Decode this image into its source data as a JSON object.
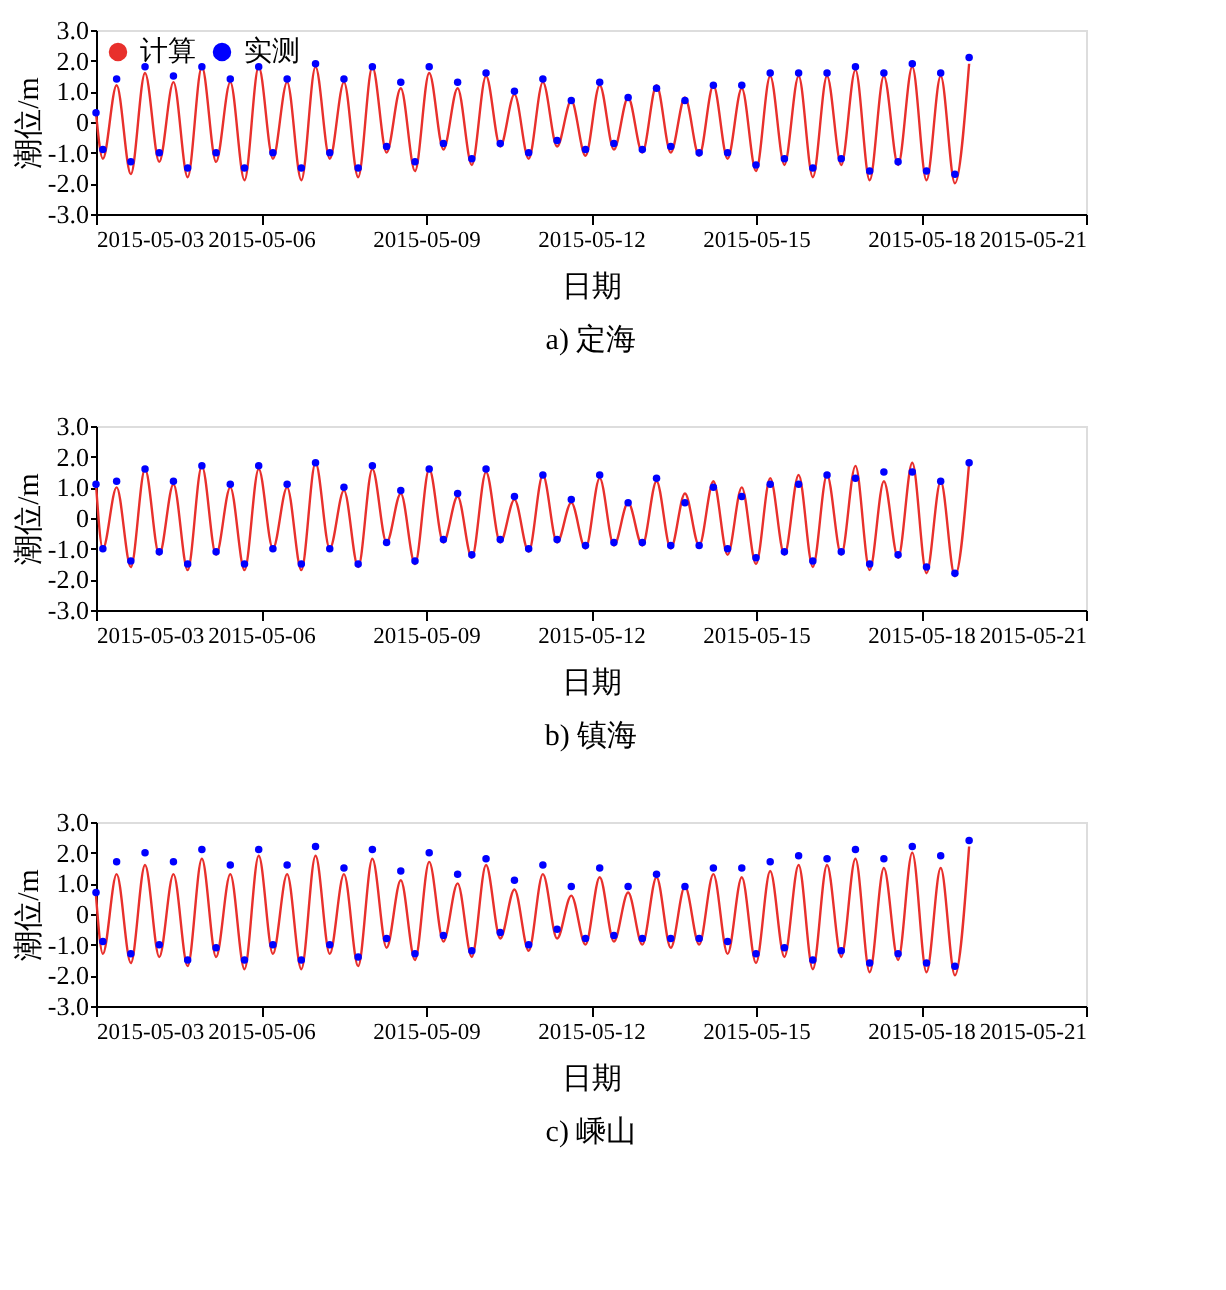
{
  "chart_data": [
    {
      "type": "line",
      "title": "a) 定海",
      "xlabel": "日期",
      "ylabel": "潮位/m",
      "legend": "top left",
      "grid": false,
      "x": [
        "2015-05-03T00:00",
        "2015-05-03T03:00",
        "2015-05-03T09:00",
        "2015-05-03T15:12",
        "2015-05-03T21:24",
        "2015-05-04T03:36",
        "2015-05-04T09:48",
        "2015-05-04T16:00",
        "2015-05-04T22:12",
        "2015-05-05T04:24",
        "2015-05-05T10:36",
        "2015-05-05T16:48",
        "2015-05-05T23:00",
        "2015-05-06T05:12",
        "2015-05-06T11:24",
        "2015-05-06T17:36",
        "2015-05-06T23:48",
        "2015-05-07T06:00",
        "2015-05-07T12:12",
        "2015-05-07T18:24",
        "2015-05-08T00:36",
        "2015-05-08T06:48",
        "2015-05-08T13:00",
        "2015-05-08T19:12",
        "2015-05-09T01:24",
        "2015-05-09T07:36",
        "2015-05-09T13:48",
        "2015-05-09T20:00",
        "2015-05-10T02:12",
        "2015-05-10T08:24",
        "2015-05-10T14:36",
        "2015-05-10T20:48",
        "2015-05-11T03:00",
        "2015-05-11T09:12",
        "2015-05-11T15:24",
        "2015-05-11T21:36",
        "2015-05-12T03:48",
        "2015-05-12T10:00",
        "2015-05-12T16:12",
        "2015-05-12T22:24",
        "2015-05-13T04:36",
        "2015-05-13T10:48",
        "2015-05-13T17:00",
        "2015-05-13T23:12",
        "2015-05-14T05:24",
        "2015-05-14T11:36",
        "2015-05-14T17:48",
        "2015-05-15T00:00",
        "2015-05-15T06:12",
        "2015-05-15T12:24",
        "2015-05-15T18:36",
        "2015-05-16T00:48",
        "2015-05-16T07:00",
        "2015-05-16T13:12",
        "2015-05-16T19:24",
        "2015-05-17T01:36",
        "2015-05-17T07:48",
        "2015-05-17T14:00",
        "2015-05-17T20:12",
        "2015-05-18T02:24",
        "2015-05-18T08:36",
        "2015-05-18T14:48",
        "2015-05-18T21:00"
      ],
      "xlim": [
        "2015-05-03",
        "2015-05-21"
      ],
      "xticks": [
        {
          "value": "2015-05-03",
          "label": "2015-05-03"
        },
        {
          "value": "2015-05-06",
          "label": "2015-05-06"
        },
        {
          "value": "2015-05-09",
          "label": "2015-05-09"
        },
        {
          "value": "2015-05-12",
          "label": "2015-05-12"
        },
        {
          "value": "2015-05-15",
          "label": "2015-05-15"
        },
        {
          "value": "2015-05-18",
          "label": "2015-05-18"
        },
        {
          "value": "2015-05-21",
          "label": "2015-05-21"
        }
      ],
      "ylim": [
        -3,
        3
      ],
      "yticks": [
        {
          "value": 3,
          "label": "3.0"
        },
        {
          "value": 2,
          "label": "2.0"
        },
        {
          "value": 1,
          "label": "1.0"
        },
        {
          "value": 0,
          "label": "0"
        },
        {
          "value": -1,
          "label": "-1.0"
        },
        {
          "value": -2,
          "label": "-2.0"
        },
        {
          "value": -3,
          "label": "-3.0"
        }
      ],
      "series": [
        {
          "name": "计算",
          "color": "#e8302c",
          "line_style": "solid",
          "values": [
            0.3,
            -1.2,
            1.2,
            -1.7,
            1.6,
            -1.3,
            1.3,
            -1.8,
            1.8,
            -1.3,
            1.3,
            -1.9,
            1.8,
            -1.2,
            1.3,
            -1.9,
            1.8,
            -1.2,
            1.3,
            -1.8,
            1.8,
            -1.0,
            1.1,
            -1.6,
            1.6,
            -0.9,
            1.1,
            -1.4,
            1.5,
            -0.8,
            0.9,
            -1.2,
            1.3,
            -0.8,
            0.7,
            -1.1,
            1.2,
            -0.9,
            0.8,
            -1.0,
            1.2,
            -1.0,
            0.8,
            -1.1,
            1.2,
            -1.2,
            1.1,
            -1.6,
            1.5,
            -1.4,
            1.5,
            -1.8,
            1.5,
            -1.4,
            1.7,
            -1.9,
            1.5,
            -1.4,
            1.8,
            -1.9,
            1.5,
            -2.0,
            1.9
          ]
        },
        {
          "name": "实测",
          "type": "scatter",
          "color": "#0000ff",
          "marker": "circle",
          "values": [
            0.3,
            -0.9,
            1.4,
            -1.3,
            1.8,
            -1.0,
            1.5,
            -1.5,
            1.8,
            -1.0,
            1.4,
            -1.5,
            1.8,
            -1.0,
            1.4,
            -1.5,
            1.9,
            -1.0,
            1.4,
            -1.5,
            1.8,
            -0.8,
            1.3,
            -1.3,
            1.8,
            -0.7,
            1.3,
            -1.2,
            1.6,
            -0.7,
            1.0,
            -1.0,
            1.4,
            -0.6,
            0.7,
            -0.9,
            1.3,
            -0.7,
            0.8,
            -0.9,
            1.1,
            -0.8,
            0.7,
            -1.0,
            1.2,
            -1.0,
            1.2,
            -1.4,
            1.6,
            -1.2,
            1.6,
            -1.5,
            1.6,
            -1.2,
            1.8,
            -1.6,
            1.6,
            -1.3,
            1.9,
            -1.6,
            1.6,
            -1.7,
            2.1
          ]
        }
      ]
    },
    {
      "type": "line",
      "title": "b) 镇海",
      "xlabel": "日期",
      "ylabel": "潮位/m",
      "legend": "top left",
      "grid": false,
      "x": [
        "2015-05-03T00:00",
        "2015-05-03T03:00",
        "2015-05-03T09:00",
        "2015-05-03T15:12",
        "2015-05-03T21:24",
        "2015-05-04T03:36",
        "2015-05-04T09:48",
        "2015-05-04T16:00",
        "2015-05-04T22:12",
        "2015-05-05T04:24",
        "2015-05-05T10:36",
        "2015-05-05T16:48",
        "2015-05-05T23:00",
        "2015-05-06T05:12",
        "2015-05-06T11:24",
        "2015-05-06T17:36",
        "2015-05-06T23:48",
        "2015-05-07T06:00",
        "2015-05-07T12:12",
        "2015-05-07T18:24",
        "2015-05-08T00:36",
        "2015-05-08T06:48",
        "2015-05-08T13:00",
        "2015-05-08T19:12",
        "2015-05-09T01:24",
        "2015-05-09T07:36",
        "2015-05-09T13:48",
        "2015-05-09T20:00",
        "2015-05-10T02:12",
        "2015-05-10T08:24",
        "2015-05-10T14:36",
        "2015-05-10T20:48",
        "2015-05-11T03:00",
        "2015-05-11T09:12",
        "2015-05-11T15:24",
        "2015-05-11T21:36",
        "2015-05-12T03:48",
        "2015-05-12T10:00",
        "2015-05-12T16:12",
        "2015-05-12T22:24",
        "2015-05-13T04:36",
        "2015-05-13T10:48",
        "2015-05-13T17:00",
        "2015-05-13T23:12",
        "2015-05-14T05:24",
        "2015-05-14T11:36",
        "2015-05-14T17:48",
        "2015-05-15T00:00",
        "2015-05-15T06:12",
        "2015-05-15T12:24",
        "2015-05-15T18:36",
        "2015-05-16T00:48",
        "2015-05-16T07:00",
        "2015-05-16T13:12",
        "2015-05-16T19:24",
        "2015-05-17T01:36",
        "2015-05-17T07:48",
        "2015-05-17T14:00",
        "2015-05-17T20:12",
        "2015-05-18T02:24",
        "2015-05-18T08:36",
        "2015-05-18T14:48",
        "2015-05-18T21:00"
      ],
      "xlim": [
        "2015-05-03",
        "2015-05-21"
      ],
      "xticks": [
        {
          "value": "2015-05-03",
          "label": "2015-05-03"
        },
        {
          "value": "2015-05-06",
          "label": "2015-05-06"
        },
        {
          "value": "2015-05-09",
          "label": "2015-05-09"
        },
        {
          "value": "2015-05-12",
          "label": "2015-05-12"
        },
        {
          "value": "2015-05-15",
          "label": "2015-05-15"
        },
        {
          "value": "2015-05-18",
          "label": "2015-05-18"
        },
        {
          "value": "2015-05-21",
          "label": "2015-05-21"
        }
      ],
      "ylim": [
        -3,
        3
      ],
      "yticks": [
        {
          "value": 3,
          "label": "3.0"
        },
        {
          "value": 2,
          "label": "2.0"
        },
        {
          "value": 1,
          "label": "1.0"
        },
        {
          "value": 0,
          "label": "0"
        },
        {
          "value": -1,
          "label": "-1.0"
        },
        {
          "value": -2,
          "label": "-2.0"
        },
        {
          "value": -3,
          "label": "-3.0"
        }
      ],
      "series": [
        {
          "name": "计算",
          "color": "#e8302c",
          "line_style": "solid",
          "values": [
            1.1,
            -1.0,
            1.0,
            -1.6,
            1.6,
            -1.2,
            1.1,
            -1.7,
            1.7,
            -1.2,
            1.0,
            -1.7,
            1.6,
            -1.0,
            1.0,
            -1.7,
            1.8,
            -1.0,
            0.9,
            -1.6,
            1.6,
            -0.8,
            0.8,
            -1.5,
            1.6,
            -0.8,
            0.7,
            -1.3,
            1.5,
            -0.8,
            0.6,
            -1.1,
            1.4,
            -0.8,
            0.5,
            -1.0,
            1.3,
            -0.9,
            0.5,
            -0.9,
            1.2,
            -1.0,
            0.8,
            -0.9,
            1.2,
            -1.2,
            1.0,
            -1.5,
            1.3,
            -1.2,
            1.4,
            -1.6,
            1.4,
            -1.2,
            1.7,
            -1.7,
            1.2,
            -1.3,
            1.8,
            -1.8,
            1.2,
            -1.9,
            1.8
          ]
        },
        {
          "name": "实测",
          "type": "scatter",
          "color": "#0000ff",
          "marker": "circle",
          "values": [
            1.1,
            -1.0,
            1.2,
            -1.4,
            1.6,
            -1.1,
            1.2,
            -1.5,
            1.7,
            -1.1,
            1.1,
            -1.5,
            1.7,
            -1.0,
            1.1,
            -1.5,
            1.8,
            -1.0,
            1.0,
            -1.5,
            1.7,
            -0.8,
            0.9,
            -1.4,
            1.6,
            -0.7,
            0.8,
            -1.2,
            1.6,
            -0.7,
            0.7,
            -1.0,
            1.4,
            -0.7,
            0.6,
            -0.9,
            1.4,
            -0.8,
            0.5,
            -0.8,
            1.3,
            -0.9,
            0.5,
            -0.9,
            1.0,
            -1.0,
            0.7,
            -1.3,
            1.1,
            -1.1,
            1.1,
            -1.4,
            1.4,
            -1.1,
            1.3,
            -1.5,
            1.5,
            -1.2,
            1.5,
            -1.6,
            1.2,
            -1.8,
            1.8
          ]
        }
      ]
    },
    {
      "type": "line",
      "title": "c) 嵊山",
      "xlabel": "日期",
      "ylabel": "潮位/m",
      "legend": "top left",
      "grid": false,
      "x": [
        "2015-05-03T00:00",
        "2015-05-03T03:00",
        "2015-05-03T09:00",
        "2015-05-03T15:12",
        "2015-05-03T21:24",
        "2015-05-04T03:36",
        "2015-05-04T09:48",
        "2015-05-04T16:00",
        "2015-05-04T22:12",
        "2015-05-05T04:24",
        "2015-05-05T10:36",
        "2015-05-05T16:48",
        "2015-05-05T23:00",
        "2015-05-06T05:12",
        "2015-05-06T11:24",
        "2015-05-06T17:36",
        "2015-05-06T23:48",
        "2015-05-07T06:00",
        "2015-05-07T12:12",
        "2015-05-07T18:24",
        "2015-05-08T00:36",
        "2015-05-08T06:48",
        "2015-05-08T13:00",
        "2015-05-08T19:12",
        "2015-05-09T01:24",
        "2015-05-09T07:36",
        "2015-05-09T13:48",
        "2015-05-09T20:00",
        "2015-05-10T02:12",
        "2015-05-10T08:24",
        "2015-05-10T14:36",
        "2015-05-10T20:48",
        "2015-05-11T03:00",
        "2015-05-11T09:12",
        "2015-05-11T15:24",
        "2015-05-11T21:36",
        "2015-05-12T03:48",
        "2015-05-12T10:00",
        "2015-05-12T16:12",
        "2015-05-12T22:24",
        "2015-05-13T04:36",
        "2015-05-13T10:48",
        "2015-05-13T17:00",
        "2015-05-13T23:12",
        "2015-05-14T05:24",
        "2015-05-14T11:36",
        "2015-05-14T17:48",
        "2015-05-15T00:00",
        "2015-05-15T06:12",
        "2015-05-15T12:24",
        "2015-05-15T18:36",
        "2015-05-16T00:48",
        "2015-05-16T07:00",
        "2015-05-16T13:12",
        "2015-05-16T19:24",
        "2015-05-17T01:36",
        "2015-05-17T07:48",
        "2015-05-17T14:00",
        "2015-05-17T20:12",
        "2015-05-18T02:24",
        "2015-05-18T08:36",
        "2015-05-18T14:48",
        "2015-05-18T21:00"
      ],
      "xlim": [
        "2015-05-03",
        "2015-05-21"
      ],
      "xticks": [
        {
          "value": "2015-05-03",
          "label": "2015-05-03"
        },
        {
          "value": "2015-05-06",
          "label": "2015-05-06"
        },
        {
          "value": "2015-05-09",
          "label": "2015-05-09"
        },
        {
          "value": "2015-05-12",
          "label": "2015-05-12"
        },
        {
          "value": "2015-05-15",
          "label": "2015-05-15"
        },
        {
          "value": "2015-05-18",
          "label": "2015-05-18"
        },
        {
          "value": "2015-05-21",
          "label": "2015-05-21"
        }
      ],
      "ylim": [
        -3,
        3
      ],
      "yticks": [
        {
          "value": 3,
          "label": "3.0"
        },
        {
          "value": 2,
          "label": "2.0"
        },
        {
          "value": 1,
          "label": "1.0"
        },
        {
          "value": 0,
          "label": "0"
        },
        {
          "value": -1,
          "label": "-1.0"
        },
        {
          "value": -2,
          "label": "-2.0"
        },
        {
          "value": -3,
          "label": "-3.0"
        }
      ],
      "series": [
        {
          "name": "计算",
          "color": "#e8302c",
          "line_style": "solid",
          "values": [
            0.6,
            -1.3,
            1.3,
            -1.6,
            1.6,
            -1.4,
            1.3,
            -1.7,
            1.8,
            -1.4,
            1.3,
            -1.8,
            1.9,
            -1.3,
            1.3,
            -1.8,
            1.9,
            -1.3,
            1.3,
            -1.7,
            1.8,
            -1.1,
            1.1,
            -1.5,
            1.7,
            -0.9,
            1.0,
            -1.4,
            1.6,
            -0.8,
            0.8,
            -1.2,
            1.3,
            -0.8,
            0.6,
            -1.0,
            1.2,
            -0.9,
            0.7,
            -1.0,
            1.2,
            -1.1,
            0.9,
            -1.0,
            1.3,
            -1.3,
            1.2,
            -1.6,
            1.4,
            -1.4,
            1.6,
            -1.8,
            1.6,
            -1.4,
            1.8,
            -1.9,
            1.5,
            -1.5,
            2.0,
            -1.9,
            1.5,
            -2.0,
            2.2
          ]
        },
        {
          "name": "实测",
          "type": "scatter",
          "color": "#0000ff",
          "marker": "circle",
          "values": [
            0.7,
            -0.9,
            1.7,
            -1.3,
            2.0,
            -1.0,
            1.7,
            -1.5,
            2.1,
            -1.1,
            1.6,
            -1.5,
            2.1,
            -1.0,
            1.6,
            -1.5,
            2.2,
            -1.0,
            1.5,
            -1.4,
            2.1,
            -0.8,
            1.4,
            -1.3,
            2.0,
            -0.7,
            1.3,
            -1.2,
            1.8,
            -0.6,
            1.1,
            -1.0,
            1.6,
            -0.5,
            0.9,
            -0.8,
            1.5,
            -0.7,
            0.9,
            -0.8,
            1.3,
            -0.8,
            0.9,
            -0.8,
            1.5,
            -0.9,
            1.5,
            -1.3,
            1.7,
            -1.1,
            1.9,
            -1.5,
            1.8,
            -1.2,
            2.1,
            -1.6,
            1.8,
            -1.3,
            2.2,
            -1.6,
            1.9,
            -1.7,
            2.4
          ]
        }
      ]
    }
  ]
}
